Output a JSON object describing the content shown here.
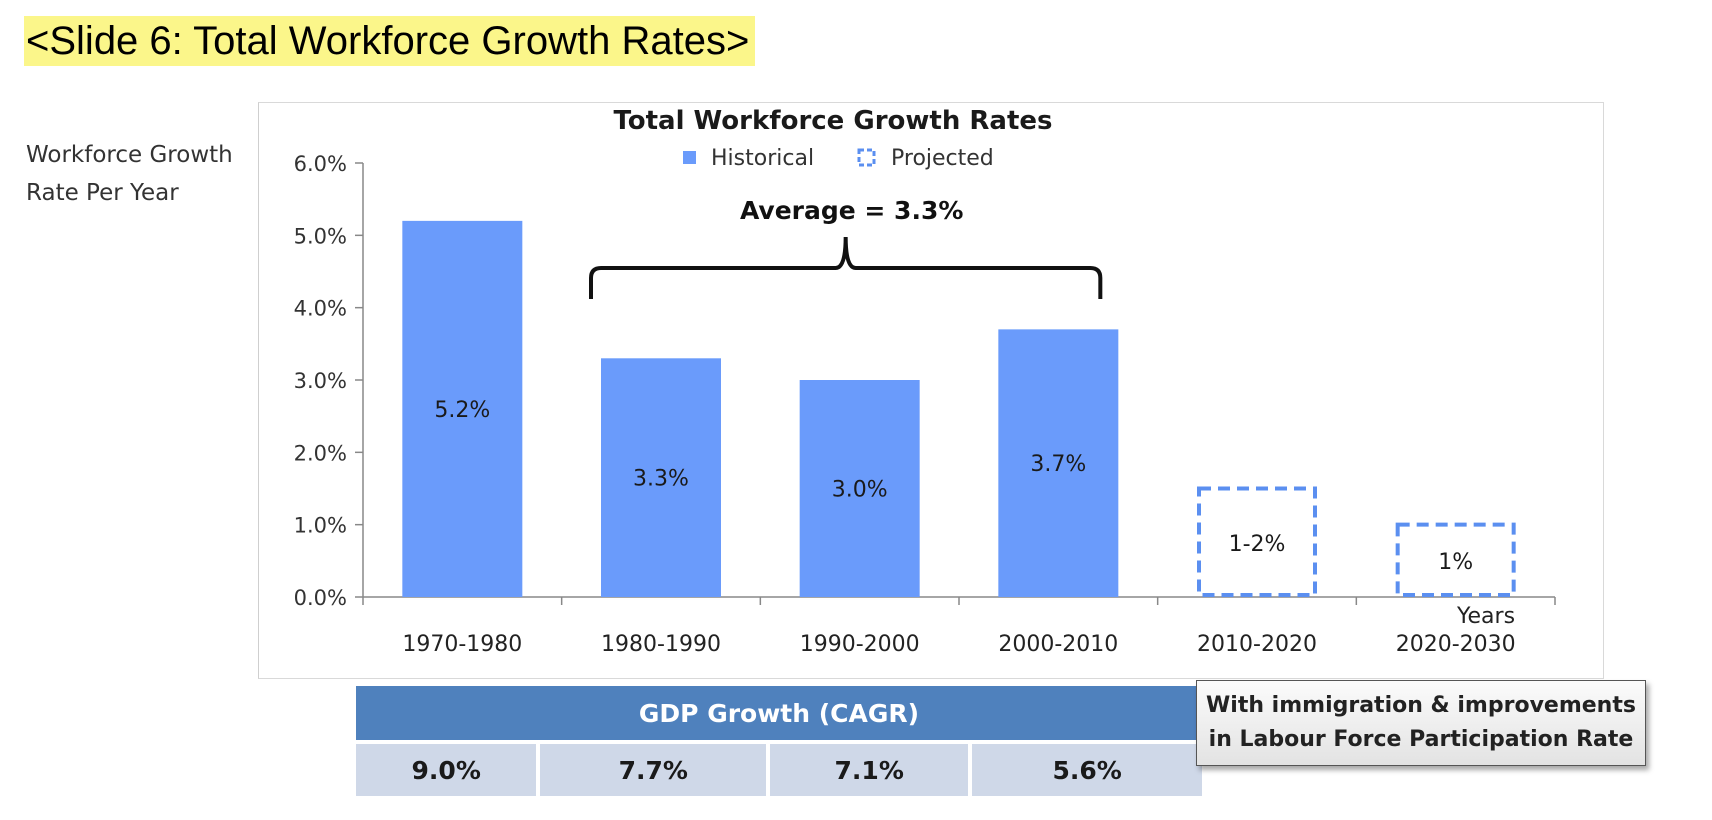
{
  "slide_heading": "<Slide 6: Total Workforce Growth Rates>",
  "chart_data": {
    "type": "bar",
    "title": "Total Workforce Growth Rates",
    "ylabel": [
      "Workforce Growth",
      "Rate Per Year"
    ],
    "xlabel": "Years",
    "ylim": [
      0,
      6
    ],
    "yticks": [
      "0.0%",
      "1.0%",
      "2.0%",
      "3.0%",
      "4.0%",
      "5.0%",
      "6.0%"
    ],
    "categories": [
      "1970-1980",
      "1980-1990",
      "1990-2000",
      "2000-2010",
      "2010-2020",
      "2020-2030"
    ],
    "legend": {
      "position": "top-center",
      "items": [
        {
          "label": "Historical",
          "style": "solid"
        },
        {
          "label": "Projected",
          "style": "dashed"
        }
      ]
    },
    "series": [
      {
        "name": "Historical",
        "style": "solid",
        "values": [
          5.2,
          3.3,
          3.0,
          3.7,
          null,
          null
        ],
        "labels": [
          "5.2%",
          "3.3%",
          "3.0%",
          "3.7%",
          "",
          ""
        ]
      },
      {
        "name": "Projected",
        "style": "dashed",
        "values": [
          null,
          null,
          null,
          null,
          1.5,
          1.0
        ],
        "labels": [
          "",
          "",
          "",
          "",
          "1-2%",
          "1%"
        ]
      }
    ],
    "annotation": {
      "text": "Average = 3.3%",
      "spans_categories": [
        1,
        3
      ]
    },
    "grid": false,
    "colors": {
      "bar": "#6a9bfb",
      "dashed": "#5b8ff0"
    }
  },
  "gdp_table": {
    "header": "GDP Growth (CAGR)",
    "values": [
      "9.0%",
      "7.7%",
      "7.1%",
      "5.6%"
    ]
  },
  "note": [
    "With immigration & improvements",
    "in Labour Force Participation Rate"
  ]
}
